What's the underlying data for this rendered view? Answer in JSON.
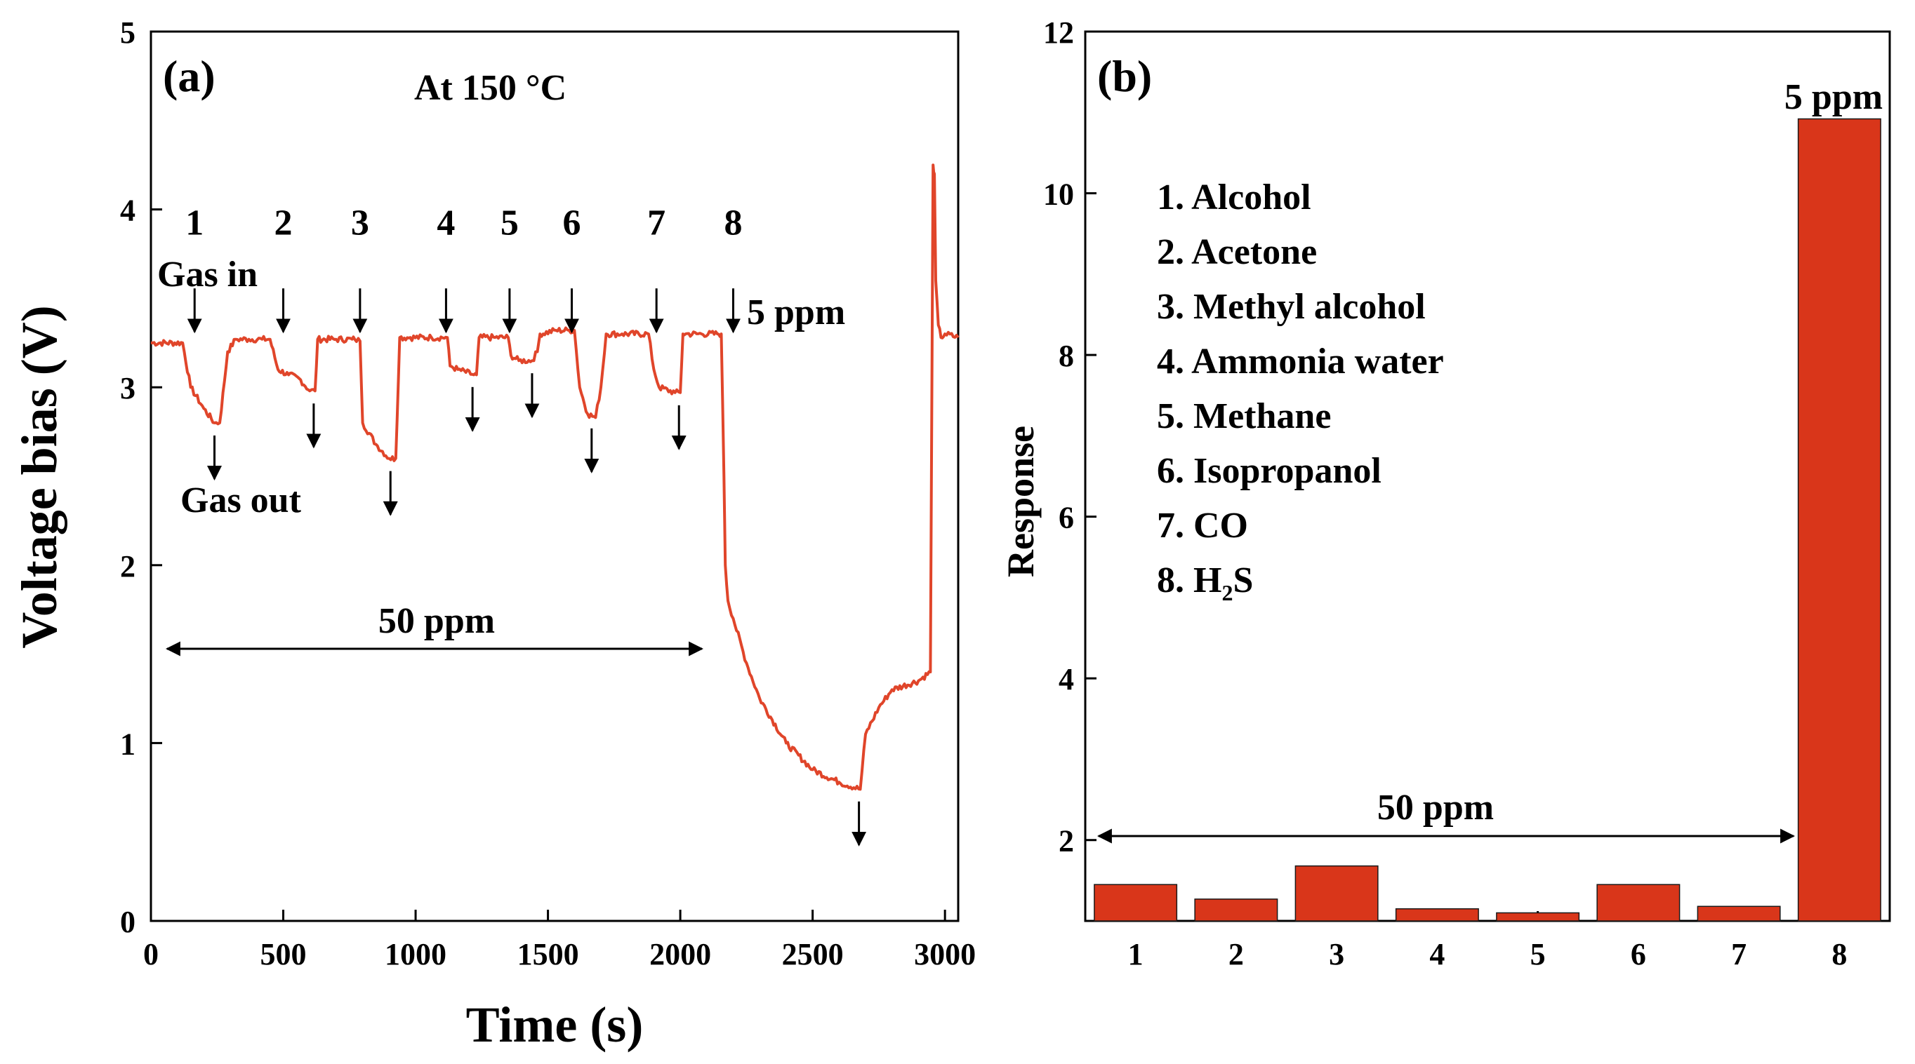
{
  "chart_data": [
    {
      "type": "line",
      "panel_label": "(a)",
      "title": "At 150 °C",
      "xlabel": "Time (s)",
      "ylabel": "Voltage bias (V)",
      "xlim": [
        0,
        3050
      ],
      "ylim": [
        0,
        5
      ],
      "xticks": [
        0,
        500,
        1000,
        1500,
        2000,
        2500,
        3000
      ],
      "yticks": [
        0,
        1,
        2,
        3,
        4,
        5
      ],
      "line_color": "#e0452a",
      "series": [
        {
          "name": "Voltage bias",
          "x": [
            0,
            120,
            150,
            200,
            240,
            260,
            290,
            320,
            370,
            420,
            450,
            480,
            520,
            560,
            600,
            620,
            630,
            700,
            760,
            770,
            790,
            800,
            850,
            900,
            925,
            940,
            980,
            1060,
            1120,
            1130,
            1160,
            1220,
            1230,
            1240,
            1300,
            1350,
            1360,
            1390,
            1440,
            1460,
            1470,
            1530,
            1580,
            1600,
            1620,
            1650,
            1680,
            1700,
            1720,
            1780,
            1880,
            1900,
            1920,
            1980,
            2000,
            2010,
            2020,
            2080,
            2140,
            2155,
            2165,
            2170,
            2180,
            2200,
            2250,
            2300,
            2400,
            2500,
            2600,
            2680,
            2700,
            2750,
            2800,
            2900,
            2945,
            2955,
            2960,
            2965,
            2975,
            2985,
            3000,
            3050
          ],
          "y": [
            3.25,
            3.25,
            3.0,
            2.88,
            2.8,
            2.8,
            3.2,
            3.27,
            3.27,
            3.27,
            3.27,
            3.1,
            3.07,
            3.05,
            2.98,
            2.98,
            3.27,
            3.27,
            3.27,
            3.27,
            3.26,
            2.8,
            2.68,
            2.6,
            2.6,
            3.28,
            3.28,
            3.28,
            3.28,
            3.12,
            3.1,
            3.07,
            3.07,
            3.28,
            3.28,
            3.28,
            3.18,
            3.15,
            3.15,
            3.2,
            3.3,
            3.32,
            3.32,
            3.32,
            3.0,
            2.85,
            2.83,
            3.0,
            3.3,
            3.3,
            3.3,
            3.1,
            3.0,
            2.97,
            2.97,
            3.3,
            3.3,
            3.3,
            3.3,
            3.3,
            2.5,
            2.0,
            1.8,
            1.7,
            1.45,
            1.25,
            1.0,
            0.85,
            0.78,
            0.74,
            1.05,
            1.2,
            1.3,
            1.35,
            1.4,
            4.25,
            4.2,
            3.6,
            3.35,
            3.28,
            3.3,
            3.28
          ]
        }
      ],
      "gas_in_labels": [
        "1",
        "2",
        "3",
        "4",
        "5",
        "6",
        "7",
        "8"
      ],
      "gas_in_times": [
        165,
        500,
        790,
        1115,
        1355,
        1590,
        1910,
        2200
      ],
      "gas_out_times": [
        240,
        615,
        905,
        1215,
        1440,
        1665,
        1995,
        2675
      ],
      "annotations": {
        "gas_in": "Gas in",
        "gas_out": "Gas out",
        "ppm_high": "50 ppm",
        "ppm_low": "5 ppm"
      }
    },
    {
      "type": "bar",
      "panel_label": "(b)",
      "xlabel": "",
      "ylabel": "Response",
      "ylim": [
        1,
        12
      ],
      "yticks": [
        2,
        4,
        6,
        8,
        10,
        12
      ],
      "categories": [
        "1",
        "2",
        "3",
        "4",
        "5",
        "6",
        "7",
        "8"
      ],
      "values": [
        1.45,
        1.27,
        1.68,
        1.15,
        1.1,
        1.45,
        1.18,
        10.92
      ],
      "bar_color": "#d9361a",
      "legend_items": [
        {
          "num": "1.",
          "name": "Alcohol"
        },
        {
          "num": "2.",
          "name": "Acetone"
        },
        {
          "num": "3.",
          "name": "Methyl alcohol"
        },
        {
          "num": "4.",
          "name": "Ammonia water"
        },
        {
          "num": "5.",
          "name": "Methane"
        },
        {
          "num": "6.",
          "name": "Isopropanol"
        },
        {
          "num": "7.",
          "name": "CO"
        },
        {
          "num": "8.",
          "name": "H",
          "sub": "2",
          "after": "S"
        }
      ],
      "annotations": {
        "ppm_high": "50 ppm",
        "ppm_low": "5 ppm"
      }
    }
  ]
}
